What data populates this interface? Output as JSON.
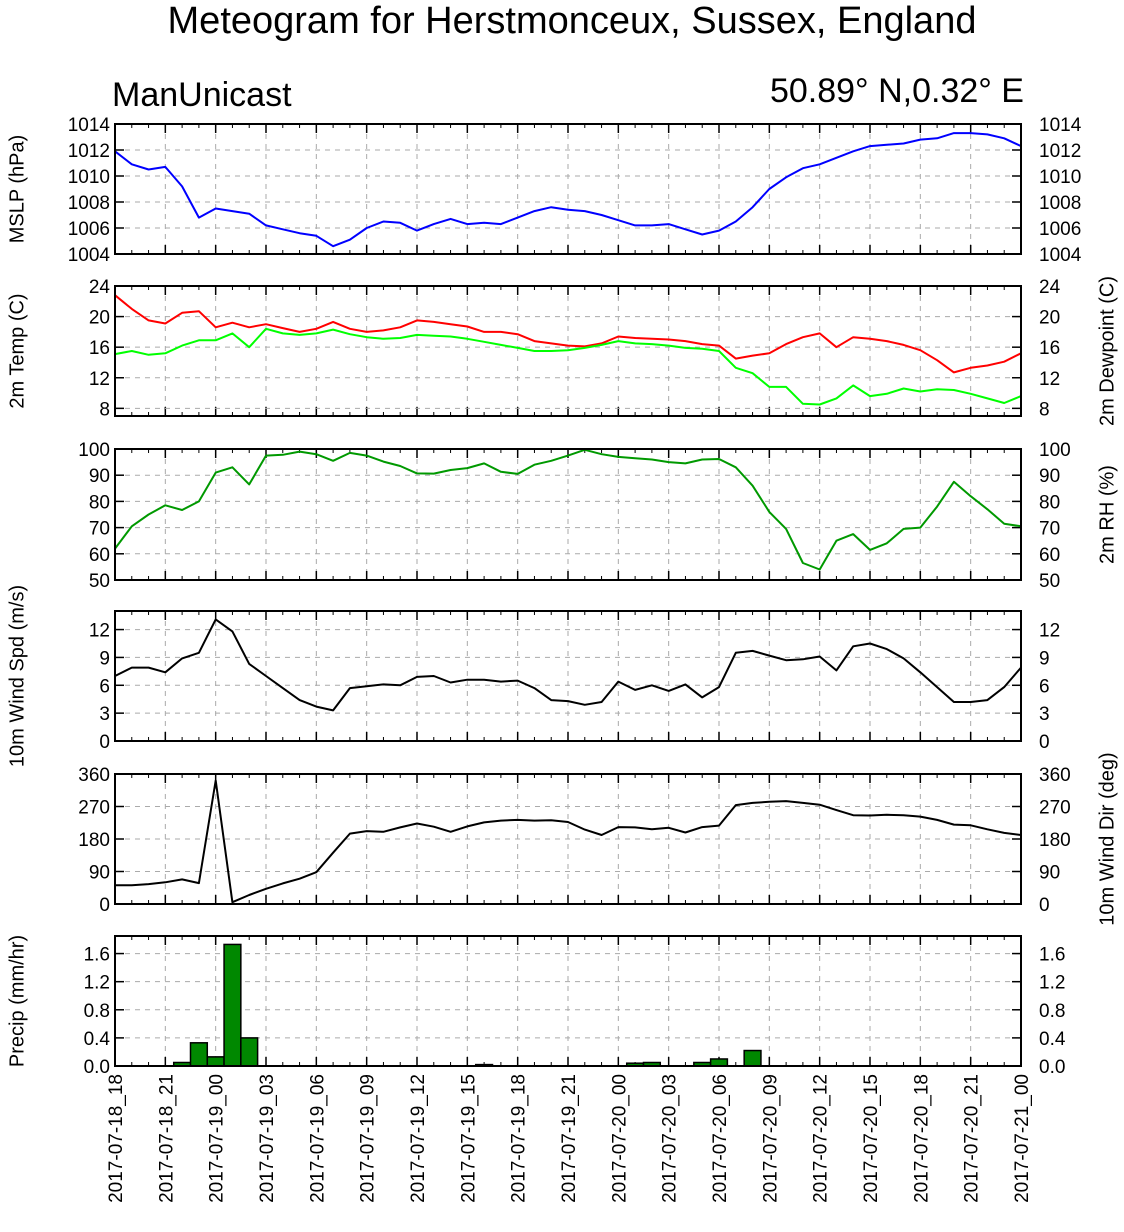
{
  "titles": {
    "main": "Meteogram for Herstmonceux, Sussex, England",
    "model": "ManUnicast",
    "location": "50.89° N,0.32° E"
  },
  "chart_data": [
    {
      "type": "line",
      "name": "mslp",
      "ylabel_left": "MSLP (hPa)",
      "ylim": [
        1004,
        1014
      ],
      "yticks": [
        1004,
        1006,
        1008,
        1010,
        1012,
        1014
      ],
      "grid": true,
      "x_hours": [
        0,
        1,
        2,
        3,
        4,
        5,
        6,
        7,
        8,
        9,
        10,
        11,
        12,
        13,
        14,
        15,
        16,
        17,
        18,
        19,
        20,
        21,
        22,
        23,
        24,
        25,
        26,
        27,
        28,
        29,
        30,
        31,
        32,
        33,
        34,
        35,
        36,
        37,
        38,
        39,
        40,
        41,
        42,
        43,
        44,
        45,
        46,
        47,
        48,
        49,
        50,
        51,
        52,
        53,
        54
      ],
      "series": [
        {
          "color": "#0000ff",
          "values": [
            1011.9,
            1010.9,
            1010.5,
            1010.7,
            1009.2,
            1006.8,
            1007.5,
            1007.3,
            1007.1,
            1006.2,
            1005.9,
            1005.6,
            1005.4,
            1004.6,
            1005.1,
            1006.0,
            1006.5,
            1006.4,
            1005.8,
            1006.3,
            1006.7,
            1006.3,
            1006.4,
            1006.3,
            1006.8,
            1007.3,
            1007.6,
            1007.4,
            1007.3,
            1007.0,
            1006.6,
            1006.2,
            1006.2,
            1006.3,
            1005.9,
            1005.5,
            1005.8,
            1006.5,
            1007.6,
            1009.0,
            1009.9,
            1010.6,
            1010.9,
            1011.4,
            1011.9,
            1012.3,
            1012.4,
            1012.5,
            1012.8,
            1012.9,
            1013.3,
            1013.3,
            1013.2,
            1012.9,
            1012.3
          ]
        }
      ]
    },
    {
      "type": "line",
      "name": "temp-dewpoint",
      "ylabel_left": "2m Temp (C)",
      "ylabel_right": "2m Dewpoint (C)",
      "ylim": [
        7,
        24
      ],
      "yticks": [
        8,
        12,
        16,
        20,
        24
      ],
      "grid": true,
      "series": [
        {
          "name": "2m Temp (C)",
          "color": "#ff0000",
          "values": [
            22.8,
            21.0,
            19.5,
            19.1,
            20.5,
            20.7,
            18.6,
            19.2,
            18.6,
            19.0,
            18.5,
            18.0,
            18.4,
            19.3,
            18.4,
            18.0,
            18.2,
            18.6,
            19.5,
            19.3,
            19.0,
            18.7,
            18.0,
            18.0,
            17.7,
            16.8,
            16.5,
            16.2,
            16.1,
            16.5,
            17.4,
            17.2,
            17.1,
            17.0,
            16.8,
            16.4,
            16.2,
            14.5,
            14.9,
            15.2,
            16.4,
            17.3,
            17.8,
            16.0,
            17.3,
            17.1,
            16.8,
            16.3,
            15.6,
            14.3,
            12.7,
            13.3,
            13.6,
            14.1,
            15.2
          ]
        },
        {
          "name": "2m Dewpoint (C)",
          "color": "#00ff00",
          "values": [
            15.1,
            15.5,
            15.0,
            15.2,
            16.2,
            16.9,
            16.9,
            17.8,
            16.0,
            18.4,
            17.8,
            17.6,
            17.8,
            18.3,
            17.7,
            17.3,
            17.1,
            17.2,
            17.6,
            17.5,
            17.4,
            17.1,
            16.7,
            16.3,
            15.9,
            15.5,
            15.5,
            15.6,
            15.9,
            16.3,
            16.8,
            16.5,
            16.4,
            16.2,
            15.9,
            15.8,
            15.5,
            13.3,
            12.6,
            10.8,
            10.8,
            8.6,
            8.5,
            9.3,
            11.0,
            9.6,
            9.9,
            10.6,
            10.2,
            10.5,
            10.4,
            9.9,
            9.3,
            8.7,
            9.6
          ]
        }
      ]
    },
    {
      "type": "line",
      "name": "rh",
      "ylabel_right": "2m RH (%)",
      "ylim": [
        50,
        100
      ],
      "yticks": [
        50,
        60,
        70,
        80,
        90,
        100
      ],
      "grid": true,
      "series": [
        {
          "color": "#009900",
          "values": [
            62.0,
            70.5,
            75.0,
            78.5,
            76.7,
            80.0,
            91.0,
            93.0,
            86.5,
            97.5,
            97.8,
            99.0,
            98.0,
            95.5,
            98.5,
            97.5,
            95.2,
            93.5,
            90.7,
            90.6,
            92.0,
            92.7,
            94.5,
            91.3,
            90.5,
            94.0,
            95.5,
            97.5,
            99.7,
            98.0,
            97.0,
            96.5,
            96.0,
            95.0,
            94.5,
            96.0,
            96.2,
            93.0,
            86.0,
            76.0,
            69.5,
            56.5,
            54.0,
            65.0,
            67.5,
            61.5,
            64.0,
            69.5,
            70.0,
            78.0,
            87.5,
            82.0,
            77.0,
            71.5,
            70.5
          ]
        }
      ]
    },
    {
      "type": "line",
      "name": "wind-speed",
      "ylabel_left": "10m Wind Spd (m/s)",
      "ylim": [
        0,
        14
      ],
      "yticks": [
        0,
        3,
        6,
        9,
        12
      ],
      "grid": true,
      "series": [
        {
          "color": "#000000",
          "values": [
            7.0,
            7.9,
            7.9,
            7.4,
            8.9,
            9.5,
            13.1,
            11.8,
            8.3,
            7.0,
            5.7,
            4.4,
            3.7,
            3.3,
            5.7,
            5.9,
            6.1,
            6.0,
            6.9,
            7.0,
            6.3,
            6.6,
            6.6,
            6.4,
            6.5,
            5.7,
            4.4,
            4.3,
            3.9,
            4.2,
            6.4,
            5.5,
            6.0,
            5.4,
            6.1,
            4.7,
            5.8,
            9.5,
            9.7,
            9.2,
            8.7,
            8.8,
            9.1,
            7.6,
            10.2,
            10.5,
            9.9,
            8.9,
            7.4,
            5.8,
            4.2,
            4.2,
            4.4,
            5.8,
            7.9
          ]
        }
      ]
    },
    {
      "type": "line",
      "name": "wind-direction",
      "ylabel_right": "10m Wind Dir (deg)",
      "ylim": [
        0,
        360
      ],
      "yticks": [
        0,
        90,
        180,
        270,
        360
      ],
      "grid": true,
      "series": [
        {
          "color": "#000000",
          "values": [
            52,
            52,
            55,
            60,
            68,
            58,
            342,
            5,
            25,
            42,
            57,
            70,
            88,
            142,
            195,
            202,
            200,
            212,
            223,
            214,
            200,
            215,
            226,
            231,
            233,
            231,
            232,
            227,
            206,
            191,
            213,
            212,
            207,
            211,
            198,
            213,
            217,
            274,
            280,
            283,
            285,
            280,
            275,
            260,
            246,
            245,
            247,
            246,
            242,
            233,
            220,
            218,
            207,
            197,
            191
          ]
        }
      ]
    },
    {
      "type": "bar",
      "name": "precip",
      "ylabel_left": "Precip (mm/hr)",
      "ylim": [
        0,
        1.85
      ],
      "yticks": [
        0.0,
        0.4,
        0.8,
        1.2,
        1.6
      ],
      "yticklabels": [
        "0.0",
        "0.4",
        "0.8",
        "1.2",
        "1.6"
      ],
      "grid": true,
      "bar_color": "#008800",
      "series": [
        {
          "values": [
            0,
            0,
            0,
            0,
            0.05,
            0.33,
            0.13,
            1.73,
            0.4,
            0,
            0,
            0,
            0,
            0,
            0,
            0,
            0,
            0,
            0,
            0,
            0,
            0,
            0.02,
            0,
            0,
            0,
            0,
            0,
            0,
            0,
            0,
            0.04,
            0.05,
            0,
            0,
            0.05,
            0.1,
            0,
            0.22,
            0,
            0,
            0,
            0,
            0,
            0,
            0,
            0,
            0,
            0,
            0,
            0,
            0,
            0,
            0,
            0
          ]
        }
      ]
    }
  ],
  "x_axis": {
    "hours_total": 54,
    "ticks": [
      {
        "hour": 0,
        "label": "2017-07-18_18"
      },
      {
        "hour": 3,
        "label": "2017-07-18_21"
      },
      {
        "hour": 6,
        "label": "2017-07-19_00"
      },
      {
        "hour": 9,
        "label": "2017-07-19_03"
      },
      {
        "hour": 12,
        "label": "2017-07-19_06"
      },
      {
        "hour": 15,
        "label": "2017-07-19_09"
      },
      {
        "hour": 18,
        "label": "2017-07-19_12"
      },
      {
        "hour": 21,
        "label": "2017-07-19_15"
      },
      {
        "hour": 24,
        "label": "2017-07-19_18"
      },
      {
        "hour": 27,
        "label": "2017-07-19_21"
      },
      {
        "hour": 30,
        "label": "2017-07-20_00"
      },
      {
        "hour": 33,
        "label": "2017-07-20_03"
      },
      {
        "hour": 36,
        "label": "2017-07-20_06"
      },
      {
        "hour": 39,
        "label": "2017-07-20_09"
      },
      {
        "hour": 42,
        "label": "2017-07-20_12"
      },
      {
        "hour": 45,
        "label": "2017-07-20_15"
      },
      {
        "hour": 48,
        "label": "2017-07-20_18"
      },
      {
        "hour": 51,
        "label": "2017-07-20_21"
      },
      {
        "hour": 54,
        "label": "2017-07-21_00"
      }
    ]
  }
}
